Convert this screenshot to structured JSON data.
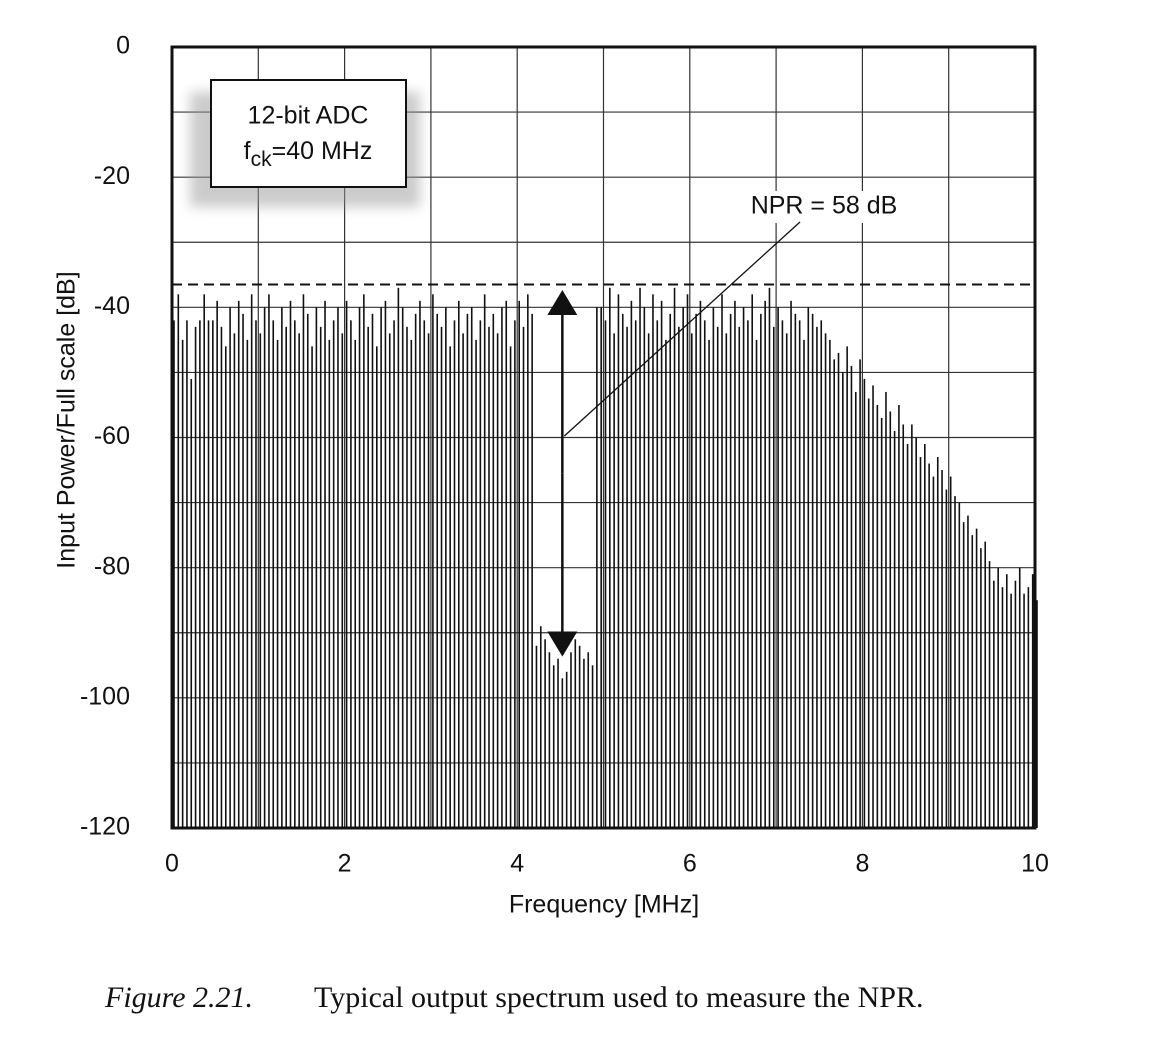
{
  "chart_data": {
    "type": "bar",
    "x_label": "Frequency [MHz]",
    "y_label": "Input Power/Full scale [dB]",
    "x": [
      0,
      0.05,
      0.1,
      0.15,
      0.2,
      0.25,
      0.3,
      0.35,
      0.4,
      0.45,
      0.5,
      0.55,
      0.6,
      0.65,
      0.7,
      0.75,
      0.8,
      0.85,
      0.9,
      0.95,
      1,
      1.05,
      1.1,
      1.15,
      1.2,
      1.25,
      1.3,
      1.35,
      1.4,
      1.45,
      1.5,
      1.55,
      1.6,
      1.65,
      1.7,
      1.75,
      1.8,
      1.85,
      1.9,
      1.95,
      2,
      2.05,
      2.1,
      2.15,
      2.2,
      2.25,
      2.3,
      2.35,
      2.4,
      2.45,
      2.5,
      2.55,
      2.6,
      2.65,
      2.7,
      2.75,
      2.8,
      2.85,
      2.9,
      2.95,
      3,
      3.05,
      3.1,
      3.15,
      3.2,
      3.25,
      3.3,
      3.35,
      3.4,
      3.45,
      3.5,
      3.55,
      3.6,
      3.65,
      3.7,
      3.75,
      3.8,
      3.85,
      3.9,
      3.95,
      4,
      4.05,
      4.1,
      4.15,
      4.2,
      4.25,
      4.3,
      4.35,
      4.4,
      4.45,
      4.5,
      4.55,
      4.6,
      4.65,
      4.7,
      4.75,
      4.8,
      4.85,
      4.9,
      4.95,
      5,
      5.05,
      5.1,
      5.15,
      5.2,
      5.25,
      5.3,
      5.35,
      5.4,
      5.45,
      5.5,
      5.55,
      5.6,
      5.65,
      5.7,
      5.75,
      5.8,
      5.85,
      5.9,
      5.95,
      6,
      6.05,
      6.1,
      6.15,
      6.2,
      6.25,
      6.3,
      6.35,
      6.4,
      6.45,
      6.5,
      6.55,
      6.6,
      6.65,
      6.7,
      6.75,
      6.8,
      6.85,
      6.9,
      6.95,
      7,
      7.05,
      7.1,
      7.15,
      7.2,
      7.25,
      7.3,
      7.35,
      7.4,
      7.45,
      7.5,
      7.55,
      7.6,
      7.65,
      7.7,
      7.75,
      7.8,
      7.85,
      7.9,
      7.95,
      8,
      8.05,
      8.1,
      8.15,
      8.2,
      8.25,
      8.3,
      8.35,
      8.4,
      8.45,
      8.5,
      8.55,
      8.6,
      8.65,
      8.7,
      8.75,
      8.8,
      8.85,
      8.9,
      8.95,
      9,
      9.05,
      9.1,
      9.15,
      9.2,
      9.25,
      9.3,
      9.35,
      9.4,
      9.45,
      9.5,
      9.55,
      9.6,
      9.65,
      9.7,
      9.75,
      9.8,
      9.85,
      9.9,
      9.95,
      10
    ],
    "values": [
      -42,
      -38,
      -45,
      -42,
      -51,
      -43,
      -42,
      -38,
      -42,
      -42,
      -39,
      -43,
      -46,
      -40,
      -44,
      -39,
      -41,
      -45,
      -38,
      -42,
      -44,
      -40,
      -38,
      -42,
      -45,
      -40,
      -43,
      -39,
      -42,
      -44,
      -38,
      -41,
      -46,
      -40,
      -43,
      -39,
      -45,
      -42,
      -40,
      -44,
      -39,
      -42,
      -45,
      -40,
      -38,
      -43,
      -41,
      -46,
      -40,
      -39,
      -44,
      -42,
      -37,
      -40,
      -43,
      -45,
      -41,
      -39,
      -42,
      -44,
      -38,
      -41,
      -43,
      -40,
      -46,
      -42,
      -39,
      -44,
      -41,
      -40,
      -45,
      -42,
      -38,
      -43,
      -41,
      -44,
      -40,
      -39,
      -46,
      -42,
      -39,
      -43,
      -38,
      -41,
      -92,
      -89,
      -91,
      -93,
      -95,
      -94,
      -97,
      -96,
      -93,
      -91,
      -92,
      -94,
      -93,
      -95,
      -40,
      -40,
      -42,
      -37,
      -44,
      -38,
      -41,
      -43,
      -39,
      -42,
      -37,
      -40,
      -44,
      -38,
      -42,
      -39,
      -45,
      -41,
      -37,
      -43,
      -40,
      -38,
      -44,
      -41,
      -39,
      -42,
      -45,
      -40,
      -43,
      -38,
      -44,
      -41,
      -39,
      -43,
      -40,
      -42,
      -38,
      -45,
      -41,
      -39,
      -37,
      -43,
      -40,
      -42,
      -44,
      -39,
      -41,
      -42,
      -45,
      -40,
      -41,
      -43,
      -42,
      -44,
      -45,
      -48,
      -47,
      -50,
      -46,
      -49,
      -53,
      -48,
      -51,
      -54,
      -52,
      -55,
      -57,
      -53,
      -56,
      -59,
      -55,
      -58,
      -61,
      -58,
      -60,
      -63,
      -61,
      -64,
      -66,
      -63,
      -65,
      -68,
      -66,
      -69,
      -70,
      -73,
      -72,
      -75,
      -74,
      -77,
      -76,
      -79,
      -82,
      -80,
      -83,
      -81,
      -84,
      -82,
      -80,
      -84,
      -83,
      -81,
      -85
    ],
    "color": "#111111",
    "xlim": [
      0,
      10
    ],
    "ylim": [
      -120,
      0
    ],
    "xticks": [
      0,
      2,
      4,
      6,
      8,
      10
    ],
    "x_minor_ticks": [
      1,
      3,
      5,
      7,
      9
    ],
    "yticks": [
      0,
      -20,
      -40,
      -60,
      -80,
      -100,
      -120
    ],
    "y_minor_ticks": [
      -10,
      -30,
      -50,
      -70,
      -90,
      -110
    ],
    "grid": true,
    "reference_level": -36.5,
    "npr_arrow": {
      "x": 4.5,
      "top": -36.5,
      "bottom": -94.5
    },
    "npr_label": "NPR = 58 dB",
    "info_box": {
      "line1": "12-bit ADC",
      "line2_main": "f",
      "line2_sub": "ck",
      "line2_rest": "=40 MHz"
    }
  },
  "caption": {
    "label": "Figure 2.21.",
    "text": "Typical output spectrum used to measure the NPR."
  }
}
